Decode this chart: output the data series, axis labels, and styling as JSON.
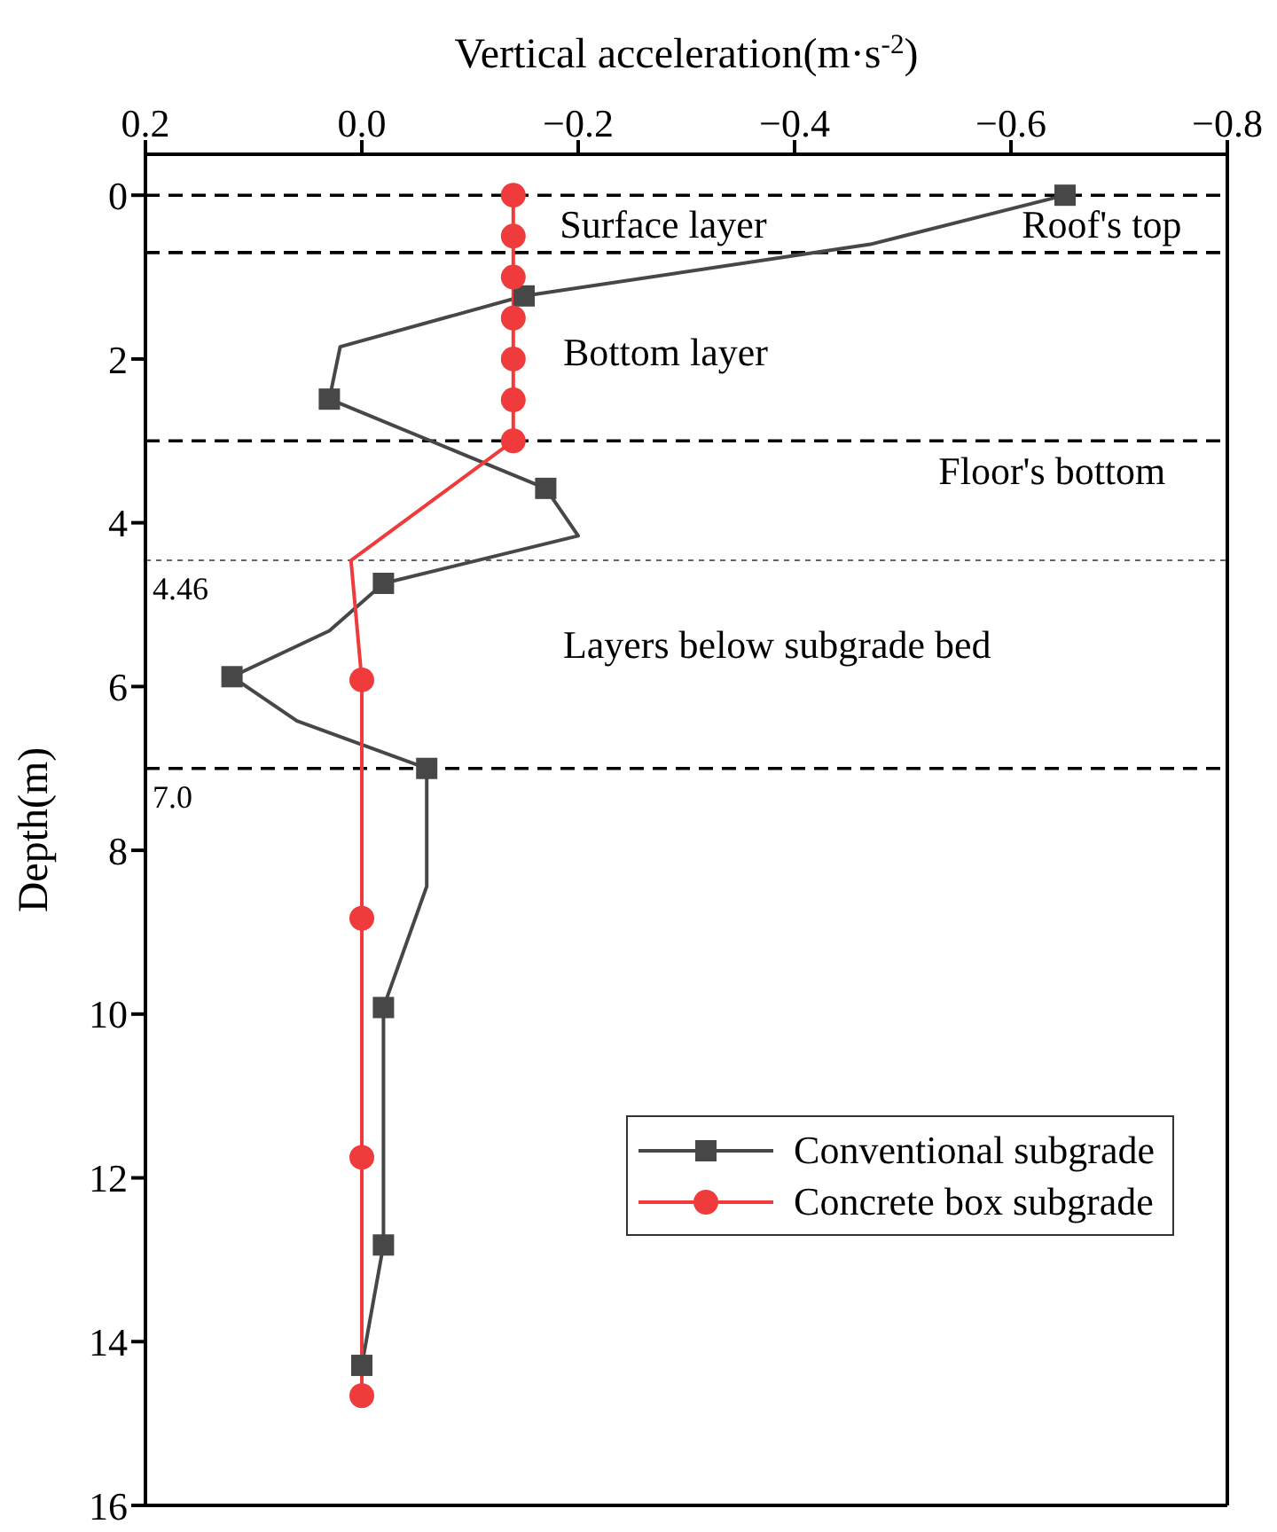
{
  "chart_data": {
    "type": "line",
    "xlabel": "Vertical acceleration(m·s$^{-2}$)",
    "ylabel": "Depth(m)",
    "xlim": [
      0.2,
      -0.8
    ],
    "xticks": [
      0.2,
      {
        "value": 0,
        "label": "0.0"
      },
      {
        "value": -0.2,
        "label": "−0.2"
      },
      {
        "value": -0.4,
        "label": "−0.4"
      },
      {
        "value": -0.6,
        "label": "−0.6"
      },
      {
        "value": -0.8,
        "label": "−0.8"
      }
    ],
    "ylim": [
      16,
      -0.5
    ],
    "yticks": [
      0,
      2,
      4,
      6,
      8,
      10,
      12,
      14,
      16
    ],
    "grid": false,
    "legend": "bottom right",
    "series": [
      {
        "color": "#474747",
        "marker": "none",
        "x": [
          -0.65,
          -0.47,
          -0.15,
          0.02,
          0.03,
          -0.17,
          -0.2,
          -0.02,
          0.03,
          0.12,
          0.06,
          -0.06,
          -0.06,
          -0.02,
          -0.02,
          -0.02,
          0.0
        ],
        "values": [
          0,
          0.6,
          1.23,
          1.85,
          2.49,
          3.58,
          4.16,
          4.74,
          5.32,
          5.88,
          6.42,
          7.0,
          8.44,
          9.92,
          11.37,
          12.82,
          14.29
        ]
      },
      {
        "color": "#ef3b3b",
        "marker": "none",
        "x": [
          -0.14,
          -0.14,
          -0.14,
          -0.14,
          -0.14,
          -0.14,
          -0.14,
          0.01,
          0.0,
          0.0,
          0.0,
          0.0
        ],
        "values": [
          0,
          0.5,
          1.0,
          1.5,
          2.0,
          2.5,
          3.0,
          4.46,
          5.92,
          8.83,
          11.75,
          14.66
        ]
      },
      {
        "name": "Conventional subgrade",
        "type": "scatter",
        "color": "#474747",
        "marker": "square",
        "x": [
          -0.65,
          -0.15,
          0.03,
          -0.17,
          -0.02,
          0.12,
          -0.06,
          -0.02,
          -0.02,
          0.0
        ],
        "values": [
          0,
          1.23,
          2.49,
          3.58,
          4.74,
          5.88,
          7.0,
          9.92,
          12.82,
          14.29
        ]
      },
      {
        "name": "Concrete box subgrade",
        "type": "scatter",
        "color": "#ef3b3b",
        "marker": "circle",
        "x": [
          -0.14,
          -0.14,
          -0.14,
          -0.14,
          -0.14,
          -0.14,
          -0.14,
          0.0,
          0.0,
          0.0,
          0.0
        ],
        "values": [
          0,
          0.5,
          1.0,
          1.5,
          2.0,
          2.5,
          3.0,
          5.92,
          8.83,
          11.75,
          14.66
        ]
      }
    ],
    "ref_lines": [
      {
        "axis": "y",
        "value": 0,
        "color": "#000000",
        "line_style": "dashed"
      },
      {
        "axis": "y",
        "value": 0.7,
        "color": "#000000",
        "line_style": "dashed"
      },
      {
        "axis": "y",
        "value": 3,
        "color": "#000000",
        "line_style": "dashed"
      },
      {
        "axis": "y",
        "value": 4.46,
        "label": "4.46",
        "color": "#666666",
        "line_style": "dotted"
      },
      {
        "axis": "y",
        "value": 7,
        "label": "7.0",
        "color": "#000000",
        "line_style": "dashed"
      }
    ],
    "annotations": [
      "Surface layer",
      "Roof's top",
      "Bottom layer",
      "Floor's bottom",
      "Layers below subgrade bed"
    ]
  }
}
